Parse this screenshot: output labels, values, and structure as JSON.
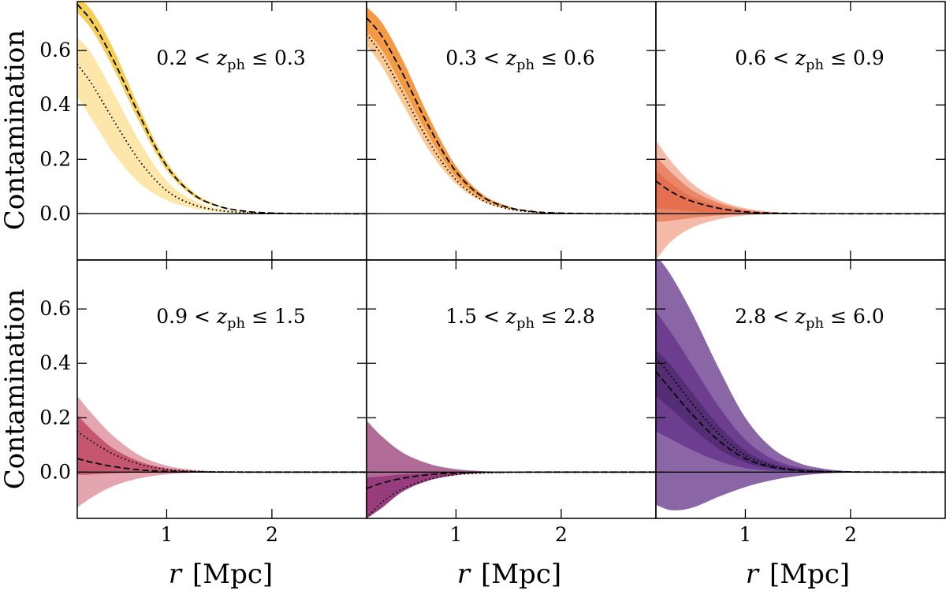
{
  "figure": {
    "ylabel": "Contamination",
    "xlabel_var": "r",
    "xlabel_unit": "[Mpc]"
  },
  "chart_data": [
    {
      "type": "area",
      "label": "0.2 < z_ph ≤ 0.3",
      "xlim": [
        0.15,
        2.9
      ],
      "ylim": [
        -0.17,
        0.78
      ],
      "xticks": [
        1,
        2
      ],
      "yticks": [
        0.0,
        0.2,
        0.4,
        0.6
      ],
      "x": [
        0.15,
        0.3,
        0.5,
        0.75,
        1.0,
        1.25,
        1.5,
        1.75,
        2.0,
        2.25,
        2.5,
        2.9
      ],
      "bands": [
        {
          "color": "#fce6aa",
          "lower": [
            0.43,
            0.34,
            0.22,
            0.11,
            0.05,
            0.02,
            0.007,
            0.002,
            0.0005,
            0.0001,
            0.0,
            0.0
          ],
          "upper": [
            0.65,
            0.58,
            0.44,
            0.26,
            0.12,
            0.05,
            0.018,
            0.006,
            0.002,
            0.0005,
            0.0001,
            0.0
          ]
        },
        {
          "color": "#f5ce55",
          "lower": [
            0.74,
            0.67,
            0.53,
            0.33,
            0.16,
            0.065,
            0.025,
            0.008,
            0.002,
            0.0005,
            0.0001,
            0.0
          ],
          "upper": [
            0.8,
            0.74,
            0.6,
            0.38,
            0.19,
            0.08,
            0.03,
            0.01,
            0.003,
            0.0008,
            0.0002,
            0.0
          ]
        }
      ],
      "dashed": [
        0.77,
        0.7,
        0.56,
        0.355,
        0.175,
        0.072,
        0.027,
        0.009,
        0.0025,
        0.0007,
        0.0002,
        0.0
      ],
      "dotted": [
        0.55,
        0.47,
        0.34,
        0.19,
        0.085,
        0.034,
        0.012,
        0.004,
        0.001,
        0.0003,
        0.0001,
        0.0
      ]
    },
    {
      "type": "area",
      "label": "0.3 < z_ph ≤ 0.6",
      "xlim": [
        0.15,
        2.9
      ],
      "ylim": [
        -0.17,
        0.78
      ],
      "xticks": [
        1,
        2
      ],
      "yticks": [
        0.0,
        0.2,
        0.4,
        0.6
      ],
      "x": [
        0.15,
        0.3,
        0.5,
        0.75,
        1.0,
        1.25,
        1.5,
        1.75,
        2.0,
        2.25,
        2.5,
        2.9
      ],
      "bands": [
        {
          "color": "#fbc892",
          "lower": [
            0.62,
            0.54,
            0.4,
            0.23,
            0.11,
            0.045,
            0.016,
            0.005,
            0.0015,
            0.0004,
            0.0001,
            0.0
          ],
          "upper": [
            0.7,
            0.63,
            0.49,
            0.3,
            0.15,
            0.06,
            0.022,
            0.007,
            0.002,
            0.0006,
            0.0001,
            0.0
          ]
        },
        {
          "color": "#f39a45",
          "lower": [
            0.67,
            0.6,
            0.46,
            0.28,
            0.135,
            0.055,
            0.02,
            0.006,
            0.0018,
            0.0005,
            0.0001,
            0.0
          ],
          "upper": [
            0.76,
            0.7,
            0.56,
            0.35,
            0.175,
            0.072,
            0.027,
            0.009,
            0.0025,
            0.0007,
            0.0002,
            0.0
          ]
        }
      ],
      "dashed": [
        0.72,
        0.65,
        0.51,
        0.315,
        0.155,
        0.063,
        0.023,
        0.0075,
        0.0022,
        0.0006,
        0.0001,
        0.0
      ],
      "dotted": [
        0.66,
        0.58,
        0.44,
        0.26,
        0.125,
        0.05,
        0.018,
        0.006,
        0.0017,
        0.0005,
        0.0001,
        0.0
      ]
    },
    {
      "type": "area",
      "label": "0.6 < z_ph ≤ 0.9",
      "xlim": [
        0.15,
        2.9
      ],
      "ylim": [
        -0.17,
        0.78
      ],
      "xticks": [
        1,
        2
      ],
      "yticks": [
        0.0,
        0.2,
        0.4,
        0.6
      ],
      "x": [
        0.15,
        0.3,
        0.5,
        0.75,
        1.0,
        1.25,
        1.5,
        1.75,
        2.0,
        2.25,
        2.5,
        2.9
      ],
      "bands": [
        {
          "color": "#f5baa8",
          "lower": [
            -0.17,
            -0.1,
            -0.05,
            -0.02,
            -0.006,
            -0.002,
            -0.0005,
            0.0,
            0.0,
            0.0,
            0.0,
            0.0
          ],
          "upper": [
            0.27,
            0.19,
            0.11,
            0.05,
            0.02,
            0.007,
            0.002,
            0.0005,
            0.0001,
            0.0,
            0.0,
            0.0
          ]
        },
        {
          "color": "#e88767",
          "lower": [
            -0.03,
            -0.025,
            -0.015,
            -0.006,
            -0.002,
            -0.0006,
            0.0,
            0.0,
            0.0,
            0.0,
            0.0,
            0.0
          ],
          "upper": [
            0.21,
            0.15,
            0.085,
            0.04,
            0.015,
            0.005,
            0.0015,
            0.0004,
            0.0001,
            0.0,
            0.0,
            0.0
          ]
        },
        {
          "color": "#e4704f",
          "lower": [
            0.02,
            0.015,
            0.008,
            0.003,
            0.001,
            0.0003,
            0.0,
            0.0,
            0.0,
            0.0,
            0.0,
            0.0
          ],
          "upper": [
            0.16,
            0.11,
            0.06,
            0.027,
            0.01,
            0.0035,
            0.001,
            0.0003,
            0.0,
            0.0,
            0.0,
            0.0
          ]
        }
      ],
      "dashed": [
        0.12,
        0.08,
        0.045,
        0.02,
        0.007,
        0.0025,
        0.0007,
        0.0002,
        0.0,
        0.0,
        0.0,
        0.0
      ],
      "dotted": null
    },
    {
      "type": "area",
      "label": "0.9 < z_ph ≤ 1.5",
      "xlim": [
        0.15,
        2.9
      ],
      "ylim": [
        -0.17,
        0.78
      ],
      "xticks": [
        1,
        2
      ],
      "yticks": [
        0.0,
        0.2,
        0.4,
        0.6
      ],
      "x": [
        0.15,
        0.3,
        0.5,
        0.75,
        1.0,
        1.25,
        1.5,
        1.75,
        2.0,
        2.25,
        2.5,
        2.9
      ],
      "bands": [
        {
          "color": "#e4a5b0",
          "lower": [
            -0.13,
            -0.09,
            -0.05,
            -0.022,
            -0.008,
            -0.0025,
            -0.0007,
            0.0,
            0.0,
            0.0,
            0.0,
            0.0
          ],
          "upper": [
            0.28,
            0.21,
            0.13,
            0.06,
            0.024,
            0.008,
            0.0025,
            0.0007,
            0.0002,
            0.0,
            0.0,
            0.0
          ]
        },
        {
          "color": "#c5566f",
          "lower": [
            -0.01,
            -0.008,
            -0.004,
            -0.0015,
            -0.0005,
            0.0,
            0.0,
            0.0,
            0.0,
            0.0,
            0.0,
            0.0
          ],
          "upper": [
            0.21,
            0.15,
            0.085,
            0.038,
            0.014,
            0.0045,
            0.0013,
            0.0004,
            0.0,
            0.0,
            0.0,
            0.0
          ]
        }
      ],
      "dashed": [
        0.05,
        0.035,
        0.02,
        0.008,
        0.003,
        0.001,
        0.0003,
        0.0,
        0.0,
        0.0,
        0.0,
        0.0
      ],
      "dotted": [
        0.15,
        0.11,
        0.065,
        0.028,
        0.01,
        0.0035,
        0.001,
        0.0003,
        0.0,
        0.0,
        0.0,
        0.0
      ]
    },
    {
      "type": "area",
      "label": "1.5 < z_ph ≤ 2.8",
      "xlim": [
        0.15,
        2.9
      ],
      "ylim": [
        -0.17,
        0.78
      ],
      "xticks": [
        1,
        2
      ],
      "yticks": [
        0.0,
        0.2,
        0.4,
        0.6
      ],
      "x": [
        0.15,
        0.3,
        0.5,
        0.75,
        1.0,
        1.25,
        1.5,
        1.75,
        2.0,
        2.25,
        2.5,
        2.9
      ],
      "bands": [
        {
          "color": "#b06c97",
          "lower": [
            -0.17,
            -0.12,
            -0.065,
            -0.028,
            -0.01,
            -0.003,
            -0.001,
            -0.0003,
            0.0,
            0.0,
            0.0,
            0.0
          ],
          "upper": [
            0.19,
            0.13,
            0.07,
            0.03,
            0.011,
            0.0035,
            0.001,
            0.0003,
            0.0,
            0.0,
            0.0,
            0.0
          ]
        },
        {
          "color": "#973d7e",
          "lower": [
            -0.17,
            -0.13,
            -0.07,
            -0.03,
            -0.011,
            -0.0035,
            -0.001,
            -0.0003,
            0.0,
            0.0,
            0.0,
            0.0
          ],
          "upper": [
            -0.02,
            -0.015,
            -0.008,
            -0.003,
            -0.001,
            -0.0003,
            0.0,
            0.0,
            0.0,
            0.0,
            0.0,
            0.0
          ]
        }
      ],
      "dashed": [
        -0.06,
        -0.04,
        -0.022,
        -0.009,
        -0.003,
        -0.001,
        -0.0003,
        0.0,
        0.0,
        0.0,
        0.0,
        0.0
      ],
      "dotted": [
        -0.17,
        -0.11,
        -0.06,
        -0.025,
        -0.009,
        -0.003,
        -0.0008,
        -0.0002,
        0.0,
        0.0,
        0.0,
        0.0
      ]
    },
    {
      "type": "area",
      "label": "2.8 < z_ph ≤ 6.0",
      "xlim": [
        0.15,
        2.9
      ],
      "ylim": [
        -0.17,
        0.78
      ],
      "xticks": [
        1,
        2
      ],
      "yticks": [
        0.0,
        0.2,
        0.4,
        0.6
      ],
      "x": [
        0.15,
        0.3,
        0.5,
        0.75,
        1.0,
        1.25,
        1.5,
        1.75,
        2.0,
        2.25,
        2.5,
        2.9
      ],
      "bands": [
        {
          "color": "#8a66a7",
          "lower": [
            -0.12,
            -0.14,
            -0.13,
            -0.09,
            -0.055,
            -0.03,
            -0.014,
            -0.005,
            -0.0015,
            -0.0004,
            0.0,
            0.0
          ],
          "upper": [
            0.8,
            0.72,
            0.58,
            0.38,
            0.2,
            0.09,
            0.035,
            0.012,
            0.0035,
            0.001,
            0.0002,
            0.0
          ]
        },
        {
          "color": "#6d3d90",
          "lower": [
            0.15,
            0.12,
            0.08,
            0.04,
            0.015,
            0.005,
            0.0015,
            0.0004,
            0.0,
            0.0,
            0.0,
            0.0
          ],
          "upper": [
            0.59,
            0.51,
            0.39,
            0.24,
            0.12,
            0.05,
            0.018,
            0.006,
            0.0017,
            0.0005,
            0.0001,
            0.0
          ]
        },
        {
          "color": "#542d75",
          "lower": [
            0.28,
            0.23,
            0.16,
            0.085,
            0.036,
            0.013,
            0.004,
            0.0012,
            0.0003,
            0.0,
            0.0,
            0.0
          ],
          "upper": [
            0.45,
            0.39,
            0.29,
            0.17,
            0.08,
            0.032,
            0.011,
            0.0035,
            0.001,
            0.0003,
            0.0,
            0.0
          ]
        }
      ],
      "dashed": [
        0.37,
        0.3,
        0.21,
        0.115,
        0.05,
        0.019,
        0.006,
        0.0018,
        0.0005,
        0.0001,
        0.0,
        0.0
      ],
      "dotted": [
        0.42,
        0.35,
        0.25,
        0.14,
        0.062,
        0.024,
        0.008,
        0.0024,
        0.0006,
        0.0002,
        0.0,
        0.0
      ]
    }
  ]
}
